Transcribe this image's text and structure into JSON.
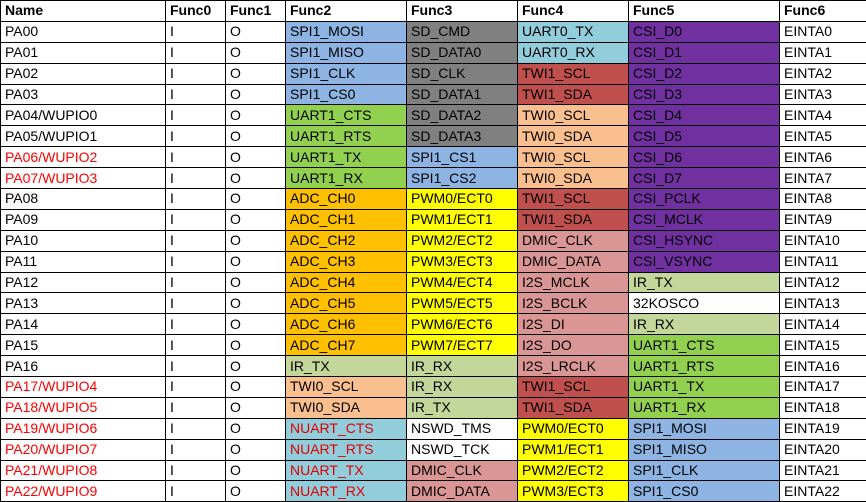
{
  "headers": [
    "Name",
    "Func0",
    "Func1",
    "Func2",
    "Func3",
    "Func4",
    "Func5",
    "Func6"
  ],
  "colors": {
    "blue": "#8db4e2",
    "darkgray": "#808080",
    "lightblue": "#92cddc",
    "purple": "#7030a0",
    "red": "#c0504d",
    "salmon": "#fabf8f",
    "green": "#92d050",
    "orange": "#ffc000",
    "yellow": "#ffff00",
    "pink": "#da9694",
    "olive": "#c4d79b",
    "white": "#ffffff",
    "name_red_text": "#ff0000"
  },
  "rows": [
    {
      "name": "PA00",
      "name_red": false,
      "f0": "I",
      "f1": "O",
      "f2": "SPI1_MOSI",
      "f2c": "blue",
      "f3": "SD_CMD",
      "f3c": "darkgray",
      "f4": "UART0_TX",
      "f4c": "lightblue",
      "f5": "CSI_D0",
      "f5c": "purple",
      "f6": "EINTA0"
    },
    {
      "name": "PA01",
      "name_red": false,
      "f0": "I",
      "f1": "O",
      "f2": "SPI1_MISO",
      "f2c": "blue",
      "f3": "SD_DATA0",
      "f3c": "darkgray",
      "f4": "UART0_RX",
      "f4c": "lightblue",
      "f5": "CSI_D1",
      "f5c": "purple",
      "f6": "EINTA1"
    },
    {
      "name": "PA02",
      "name_red": false,
      "f0": "I",
      "f1": "O",
      "f2": "SPI1_CLK",
      "f2c": "blue",
      "f3": "SD_CLK",
      "f3c": "darkgray",
      "f4": "TWI1_SCL",
      "f4c": "red",
      "f5": "CSI_D2",
      "f5c": "purple",
      "f6": "EINTA2"
    },
    {
      "name": "PA03",
      "name_red": false,
      "f0": "I",
      "f1": "O",
      "f2": "SPI1_CS0",
      "f2c": "blue",
      "f3": "SD_DATA1",
      "f3c": "darkgray",
      "f4": "TWI1_SDA",
      "f4c": "red",
      "f5": "CSI_D3",
      "f5c": "purple",
      "f6": "EINTA3"
    },
    {
      "name": "PA04/WUPIO0",
      "name_red": false,
      "f0": "I",
      "f1": "O",
      "f2": "UART1_CTS",
      "f2c": "green",
      "f3": "SD_DATA2",
      "f3c": "darkgray",
      "f4": "TWI0_SCL",
      "f4c": "salmon",
      "f5": "CSI_D4",
      "f5c": "purple",
      "f6": "EINTA4"
    },
    {
      "name": "PA05/WUPIO1",
      "name_red": false,
      "f0": "I",
      "f1": "O",
      "f2": "UART1_RTS",
      "f2c": "green",
      "f3": "SD_DATA3",
      "f3c": "darkgray",
      "f4": "TWI0_SDA",
      "f4c": "salmon",
      "f5": "CSI_D5",
      "f5c": "purple",
      "f6": "EINTA5"
    },
    {
      "name": "PA06/WUPIO2",
      "name_red": true,
      "f0": "I",
      "f1": "O",
      "f2": "UART1_TX",
      "f2c": "green",
      "f3": "SPI1_CS1",
      "f3c": "blue",
      "f4": "TWI0_SCL",
      "f4c": "salmon",
      "f5": "CSI_D6",
      "f5c": "purple",
      "f6": "EINTA6"
    },
    {
      "name": "PA07/WUPIO3",
      "name_red": true,
      "f0": "I",
      "f1": "O",
      "f2": "UART1_RX",
      "f2c": "green",
      "f3": "SPI1_CS2",
      "f3c": "blue",
      "f4": "TWI0_SDA",
      "f4c": "salmon",
      "f5": "CSI_D7",
      "f5c": "purple",
      "f6": "EINTA7"
    },
    {
      "name": "PA08",
      "name_red": false,
      "f0": "I",
      "f1": "O",
      "f2": "ADC_CH0",
      "f2c": "orange",
      "f3": "PWM0/ECT0",
      "f3c": "yellow",
      "f4": "TWI1_SCL",
      "f4c": "red",
      "f5": "CSI_PCLK",
      "f5c": "purple",
      "f6": "EINTA8"
    },
    {
      "name": "PA09",
      "name_red": false,
      "f0": "I",
      "f1": "O",
      "f2": "ADC_CH1",
      "f2c": "orange",
      "f3": "PWM1/ECT1",
      "f3c": "yellow",
      "f4": "TWI1_SDA",
      "f4c": "red",
      "f5": "CSI_MCLK",
      "f5c": "purple",
      "f6": "EINTA9"
    },
    {
      "name": "PA10",
      "name_red": false,
      "f0": "I",
      "f1": "O",
      "f2": "ADC_CH2",
      "f2c": "orange",
      "f3": "PWM2/ECT2",
      "f3c": "yellow",
      "f4": "DMIC_CLK",
      "f4c": "pink",
      "f5": "CSI_HSYNC",
      "f5c": "purple",
      "f6": "EINTA10"
    },
    {
      "name": "PA11",
      "name_red": false,
      "f0": "I",
      "f1": "O",
      "f2": "ADC_CH3",
      "f2c": "orange",
      "f3": "PWM3/ECT3",
      "f3c": "yellow",
      "f4": "DMIC_DATA",
      "f4c": "pink",
      "f5": "CSI_VSYNC",
      "f5c": "purple",
      "f6": "EINTA11"
    },
    {
      "name": "PA12",
      "name_red": false,
      "f0": "I",
      "f1": "O",
      "f2": "ADC_CH4",
      "f2c": "orange",
      "f3": "PWM4/ECT4",
      "f3c": "yellow",
      "f4": "I2S_MCLK",
      "f4c": "pink",
      "f5": "IR_TX",
      "f5c": "olive",
      "f6": "EINTA12"
    },
    {
      "name": "PA13",
      "name_red": false,
      "f0": "I",
      "f1": "O",
      "f2": "ADC_CH5",
      "f2c": "orange",
      "f3": "PWM5/ECT5",
      "f3c": "yellow",
      "f4": "I2S_BCLK",
      "f4c": "pink",
      "f5": "32KOSCO",
      "f5c": "white",
      "f6": "EINTA13"
    },
    {
      "name": "PA14",
      "name_red": false,
      "f0": "I",
      "f1": "O",
      "f2": "ADC_CH6",
      "f2c": "orange",
      "f3": "PWM6/ECT6",
      "f3c": "yellow",
      "f4": "I2S_DI",
      "f4c": "pink",
      "f5": "IR_RX",
      "f5c": "olive",
      "f6": "EINTA14"
    },
    {
      "name": "PA15",
      "name_red": false,
      "f0": "I",
      "f1": "O",
      "f2": "ADC_CH7",
      "f2c": "orange",
      "f3": "PWM7/ECT7",
      "f3c": "yellow",
      "f4": "I2S_DO",
      "f4c": "pink",
      "f5": "UART1_CTS",
      "f5c": "green",
      "f6": "EINTA15"
    },
    {
      "name": "PA16",
      "name_red": false,
      "f0": "I",
      "f1": "O",
      "f2": "IR_TX",
      "f2c": "olive",
      "f3": "IR_RX",
      "f3c": "olive",
      "f4": "I2S_LRCLK",
      "f4c": "pink",
      "f5": "UART1_RTS",
      "f5c": "green",
      "f6": "EINTA16"
    },
    {
      "name": "PA17/WUPIO4",
      "name_red": true,
      "f0": "I",
      "f1": "O",
      "f2": "TWI0_SCL",
      "f2c": "salmon",
      "f3": "IR_RX",
      "f3c": "olive",
      "f4": "TWI1_SCL",
      "f4c": "red",
      "f5": "UART1_TX",
      "f5c": "green",
      "f6": "EINTA17"
    },
    {
      "name": "PA18/WUPIO5",
      "name_red": true,
      "f0": "I",
      "f1": "O",
      "f2": "TWI0_SDA",
      "f2c": "salmon",
      "f3": "IR_TX",
      "f3c": "olive",
      "f4": "TWI1_SDA",
      "f4c": "red",
      "f5": "UART1_RX",
      "f5c": "green",
      "f6": "EINTA18"
    },
    {
      "name": "PA19/WUPIO6",
      "name_red": true,
      "f0": "I",
      "f1": "O",
      "f2": "NUART_CTS",
      "f2c": "lightblue",
      "f2red": true,
      "f3": "NSWD_TMS",
      "f3c": "white",
      "f4": "PWM0/ECT0",
      "f4c": "yellow",
      "f5": "SPI1_MOSI",
      "f5c": "blue",
      "f6": "EINTA19"
    },
    {
      "name": "PA20/WUPIO7",
      "name_red": true,
      "f0": "I",
      "f1": "O",
      "f2": "NUART_RTS",
      "f2c": "lightblue",
      "f2red": true,
      "f3": "NSWD_TCK",
      "f3c": "white",
      "f4": "PWM1/ECT1",
      "f4c": "yellow",
      "f5": "SPI1_MISO",
      "f5c": "blue",
      "f6": "EINTA20"
    },
    {
      "name": "PA21/WUPIO8",
      "name_red": true,
      "f0": "I",
      "f1": "O",
      "f2": "NUART_TX",
      "f2c": "lightblue",
      "f2red": true,
      "f3": "DMIC_CLK",
      "f3c": "pink",
      "f4": "PWM2/ECT2",
      "f4c": "yellow",
      "f5": "SPI1_CLK",
      "f5c": "blue",
      "f6": "EINTA21"
    },
    {
      "name": "PA22/WUPIO9",
      "name_red": true,
      "f0": "I",
      "f1": "O",
      "f2": "NUART_RX",
      "f2c": "lightblue",
      "f2red": true,
      "f3": "DMIC_DATA",
      "f3c": "pink",
      "f4": "PWM3/ECT3",
      "f4c": "yellow",
      "f5": "SPI1_CS0",
      "f5c": "blue",
      "f6": "EINTA22"
    }
  ]
}
